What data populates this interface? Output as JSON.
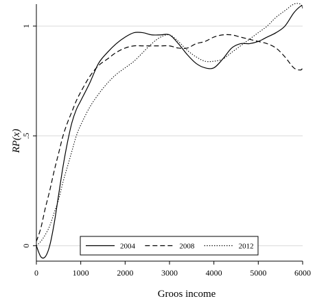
{
  "chart_data": {
    "type": "line",
    "title": "",
    "xlabel": "Groos income",
    "ylabel": "RP(x)",
    "xlim": [
      0,
      6000
    ],
    "ylim": [
      -0.07,
      1.1
    ],
    "x_ticks": [
      0,
      1000,
      2000,
      3000,
      4000,
      5000,
      6000
    ],
    "x_tick_labels": [
      "0",
      "1000",
      "2000",
      "3000",
      "4000",
      "5000",
      "6000"
    ],
    "y_ticks": [
      0,
      0.5,
      1
    ],
    "y_tick_labels": [
      "0",
      ".5",
      "1"
    ],
    "grid": "horizontal",
    "legend_position": "bottom",
    "series": [
      {
        "name": "2004",
        "style": "solid",
        "x": [
          0,
          100,
          200,
          300,
          400,
          500,
          600,
          700,
          800,
          900,
          1000,
          1200,
          1400,
          1600,
          1800,
          2000,
          2200,
          2400,
          2600,
          2800,
          3000,
          3200,
          3400,
          3600,
          3800,
          4000,
          4200,
          4400,
          4600,
          4800,
          5000,
          5200,
          5400,
          5600,
          5800,
          5950,
          6000
        ],
        "y": [
          0.0,
          -0.05,
          -0.05,
          0.0,
          0.1,
          0.23,
          0.36,
          0.47,
          0.56,
          0.62,
          0.66,
          0.74,
          0.83,
          0.88,
          0.92,
          0.95,
          0.97,
          0.97,
          0.96,
          0.96,
          0.96,
          0.92,
          0.87,
          0.83,
          0.81,
          0.81,
          0.85,
          0.9,
          0.92,
          0.92,
          0.93,
          0.95,
          0.97,
          1.0,
          1.06,
          1.09,
          1.09
        ]
      },
      {
        "name": "2008",
        "style": "dashed",
        "x": [
          0,
          100,
          200,
          300,
          400,
          500,
          600,
          700,
          800,
          900,
          1000,
          1200,
          1400,
          1600,
          1800,
          2000,
          2200,
          2400,
          2600,
          2800,
          3000,
          3200,
          3400,
          3600,
          3800,
          4000,
          4200,
          4400,
          4600,
          4800,
          5000,
          5200,
          5400,
          5600,
          5800,
          5950,
          6000
        ],
        "y": [
          0.02,
          0.08,
          0.17,
          0.25,
          0.34,
          0.42,
          0.5,
          0.56,
          0.61,
          0.66,
          0.7,
          0.77,
          0.82,
          0.85,
          0.88,
          0.9,
          0.91,
          0.91,
          0.91,
          0.91,
          0.91,
          0.9,
          0.9,
          0.92,
          0.93,
          0.95,
          0.96,
          0.96,
          0.95,
          0.94,
          0.93,
          0.92,
          0.9,
          0.86,
          0.81,
          0.8,
          0.81
        ]
      },
      {
        "name": "2012",
        "style": "dotted",
        "x": [
          0,
          100,
          200,
          300,
          400,
          500,
          600,
          700,
          800,
          900,
          1000,
          1200,
          1400,
          1600,
          1800,
          2000,
          2200,
          2400,
          2600,
          2800,
          3000,
          3200,
          3400,
          3600,
          3800,
          4000,
          4200,
          4400,
          4600,
          4800,
          5000,
          5200,
          5400,
          5600,
          5800,
          5950,
          6000
        ],
        "y": [
          0.0,
          0.02,
          0.05,
          0.09,
          0.15,
          0.21,
          0.29,
          0.36,
          0.43,
          0.5,
          0.55,
          0.63,
          0.69,
          0.74,
          0.78,
          0.81,
          0.84,
          0.88,
          0.92,
          0.95,
          0.96,
          0.93,
          0.89,
          0.86,
          0.84,
          0.84,
          0.85,
          0.88,
          0.91,
          0.94,
          0.97,
          1.0,
          1.04,
          1.07,
          1.1,
          1.1,
          1.08
        ]
      }
    ]
  }
}
